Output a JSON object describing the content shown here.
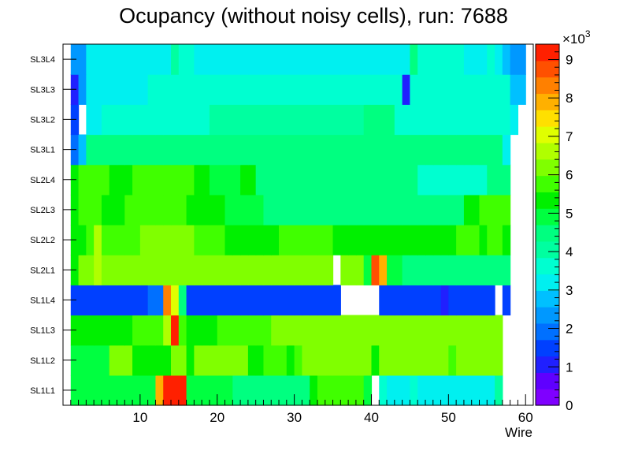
{
  "chart_data": {
    "type": "heatmap",
    "title": "Ocupancy (without noisy cells), run: 7688",
    "xlabel": "Wire",
    "ylabel": "",
    "x_range": [
      0,
      60
    ],
    "x_ticks": [
      "10",
      "20",
      "30",
      "40",
      "50",
      "60"
    ],
    "x_tick_values": [
      10,
      20,
      30,
      40,
      50,
      60
    ],
    "y_categories": [
      "SL1L1",
      "SL1L2",
      "SL1L3",
      "SL1L4",
      "SL2L1",
      "SL2L2",
      "SL2L3",
      "SL2L4",
      "SL3L1",
      "SL3L2",
      "SL3L3",
      "SL3L4"
    ],
    "z_range": [
      0,
      9400
    ],
    "z_ticks": [
      "0",
      "1",
      "2",
      "3",
      "4",
      "5",
      "6",
      "7",
      "8",
      "9"
    ],
    "z_tick_values": [
      0,
      1000,
      2000,
      3000,
      4000,
      5000,
      6000,
      7000,
      8000,
      9000
    ],
    "z_exponent": "×10",
    "z_exponent_power": "3",
    "palette": [
      "#7f00ff",
      "#5f00ff",
      "#2020ff",
      "#0040ff",
      "#0070ff",
      "#0098ff",
      "#00c0ff",
      "#00f0f0",
      "#00ffd0",
      "#00ffa0",
      "#00ff80",
      "#00ff40",
      "#00f000",
      "#40ff00",
      "#80ff00",
      "#b0ff00",
      "#e0ff00",
      "#ffe000",
      "#ffb000",
      "#ff8000",
      "#ff5000",
      "#ff2000"
    ],
    "rows": {
      "SL1L1": [
        null,
        4800,
        4800,
        4800,
        5000,
        5000,
        5000,
        5000,
        5000,
        5000,
        5000,
        5000,
        7800,
        9000,
        9000,
        9000,
        4800,
        4800,
        5000,
        5000,
        5000,
        5000,
        4600,
        4600,
        4600,
        4400,
        4400,
        4400,
        4400,
        4400,
        4400,
        4400,
        5200,
        5600,
        5600,
        5600,
        5600,
        5600,
        5600,
        5000,
        null,
        3800,
        3400,
        3400,
        3400,
        3600,
        3200,
        3200,
        3400,
        3400,
        3400,
        3400,
        3400,
        3400,
        3400,
        3400,
        4000,
        null,
        null,
        null,
        null
      ],
      "SL1L2": [
        null,
        5000,
        5000,
        5000,
        5000,
        5000,
        6000,
        6000,
        6000,
        5400,
        5400,
        5400,
        5400,
        5400,
        6000,
        6000,
        5400,
        6000,
        6000,
        6000,
        6000,
        6000,
        6000,
        6000,
        5200,
        5200,
        5600,
        5600,
        5600,
        5200,
        5600,
        6000,
        6000,
        6000,
        6000,
        6000,
        6000,
        6000,
        6000,
        6000,
        5200,
        6000,
        6000,
        6000,
        6000,
        6000,
        6000,
        6000,
        6000,
        6000,
        5600,
        6000,
        6000,
        6000,
        6000,
        6000,
        6000,
        null,
        null,
        null,
        null
      ],
      "SL1L3": [
        null,
        5200,
        5400,
        5400,
        5400,
        5400,
        5400,
        5400,
        5400,
        5800,
        5800,
        5800,
        5800,
        6500,
        9000,
        5800,
        5200,
        5200,
        5200,
        5200,
        5800,
        5800,
        5800,
        5600,
        5600,
        5800,
        5800,
        6000,
        6000,
        6000,
        6000,
        6000,
        6000,
        6000,
        6000,
        6000,
        6000,
        6000,
        6000,
        6000,
        6000,
        6000,
        6000,
        6000,
        6000,
        6000,
        6000,
        6000,
        6000,
        6000,
        6000,
        6000,
        6000,
        6000,
        6000,
        6000,
        6000,
        null,
        null,
        null,
        null
      ],
      "SL1L4": [
        null,
        1400,
        1400,
        1400,
        1400,
        1400,
        1400,
        1400,
        1400,
        1400,
        1400,
        2000,
        2000,
        8400,
        7000,
        4400,
        1600,
        1600,
        1600,
        1600,
        1600,
        1600,
        1600,
        1600,
        1600,
        1300,
        1300,
        1300,
        1300,
        1300,
        1300,
        1300,
        1300,
        1300,
        1300,
        1600,
        null,
        null,
        null,
        null,
        null,
        1300,
        1300,
        1300,
        1300,
        1300,
        1300,
        1300,
        1300,
        1000,
        1300,
        1300,
        1300,
        1300,
        1300,
        1300,
        null,
        1300,
        null,
        null,
        null
      ],
      "SL2L1": [
        null,
        5400,
        6000,
        6000,
        6500,
        6000,
        6000,
        6000,
        6000,
        6000,
        6000,
        6000,
        6000,
        6000,
        6000,
        6000,
        6000,
        6000,
        6000,
        6000,
        6000,
        6000,
        6000,
        6000,
        6000,
        6000,
        6000,
        6000,
        6000,
        6000,
        6000,
        6000,
        6000,
        6000,
        6000,
        null,
        6000,
        6000,
        6000,
        5000,
        8600,
        7800,
        5000,
        5000,
        4400,
        4400,
        4400,
        4400,
        4400,
        4400,
        4400,
        4400,
        4400,
        4400,
        4400,
        4400,
        4400,
        4400,
        null,
        null,
        null
      ],
      "SL2L2": [
        null,
        5400,
        5400,
        5600,
        6500,
        5800,
        5800,
        5600,
        5600,
        5600,
        6000,
        6000,
        6000,
        6000,
        6000,
        6000,
        6000,
        5600,
        5600,
        5600,
        5600,
        5200,
        5200,
        5200,
        5200,
        5400,
        5400,
        5400,
        5600,
        5600,
        5600,
        5600,
        5600,
        5600,
        5600,
        5400,
        5400,
        5400,
        5400,
        5400,
        5400,
        5400,
        5400,
        5400,
        5400,
        5400,
        5400,
        5400,
        5400,
        5400,
        5400,
        5600,
        5800,
        5800,
        5200,
        5600,
        5600,
        5200,
        null,
        null,
        null
      ],
      "SL2L3": [
        null,
        5200,
        5600,
        5800,
        5800,
        5400,
        5400,
        5400,
        5600,
        5600,
        5600,
        5600,
        5600,
        5600,
        5600,
        5600,
        5200,
        5200,
        5200,
        5200,
        5200,
        4800,
        4800,
        4800,
        4800,
        4800,
        4600,
        4600,
        4600,
        4400,
        4400,
        4600,
        4600,
        4600,
        4600,
        4600,
        4600,
        4600,
        4600,
        4600,
        4600,
        4600,
        4600,
        4600,
        4600,
        4600,
        4600,
        4600,
        4600,
        4600,
        4600,
        4600,
        5200,
        5200,
        5600,
        5600,
        5600,
        5600,
        null,
        null,
        null
      ],
      "SL2L4": [
        null,
        5200,
        5600,
        5600,
        5600,
        5600,
        5400,
        5400,
        5200,
        5600,
        5600,
        5600,
        5600,
        5600,
        5600,
        5600,
        5600,
        5200,
        5200,
        5000,
        5000,
        5000,
        5000,
        5200,
        5200,
        4400,
        4400,
        4400,
        4400,
        4400,
        4400,
        4400,
        4400,
        4400,
        4400,
        4400,
        4400,
        4400,
        4400,
        4400,
        4400,
        4400,
        4400,
        4400,
        4400,
        4400,
        3600,
        3600,
        3600,
        3600,
        3600,
        3600,
        3600,
        3600,
        3600,
        4400,
        4400,
        4400,
        null,
        null,
        null
      ],
      "SL3L1": [
        null,
        1800,
        2800,
        4400,
        4400,
        4400,
        4400,
        4400,
        4400,
        4400,
        4400,
        4400,
        4400,
        4400,
        4400,
        4400,
        4400,
        4400,
        4400,
        4400,
        4400,
        4400,
        4400,
        4400,
        4400,
        4400,
        4400,
        4400,
        4400,
        4400,
        4400,
        4400,
        4400,
        4400,
        4400,
        4400,
        4400,
        4400,
        4400,
        4400,
        4400,
        4400,
        4400,
        4400,
        4400,
        4600,
        4600,
        4600,
        4600,
        4600,
        4600,
        4600,
        4600,
        4400,
        4400,
        4400,
        4400,
        3200,
        null,
        null,
        null
      ],
      "SL3L2": [
        null,
        1400,
        null,
        3200,
        3200,
        3800,
        3800,
        3800,
        3800,
        3800,
        3800,
        3800,
        3800,
        3800,
        3800,
        3800,
        3800,
        3800,
        3800,
        4000,
        4000,
        4000,
        4000,
        4000,
        4000,
        4000,
        4000,
        4000,
        4000,
        4000,
        4000,
        4000,
        4000,
        4000,
        4000,
        4000,
        4000,
        4000,
        4000,
        4400,
        4400,
        4400,
        4400,
        3800,
        3800,
        3800,
        3800,
        3800,
        3800,
        3800,
        3800,
        3800,
        3800,
        3800,
        3800,
        3800,
        3800,
        3800,
        3200,
        null,
        null
      ],
      "SL3L3": [
        null,
        1200,
        2400,
        3000,
        3000,
        3400,
        3400,
        3400,
        3400,
        3400,
        3400,
        3600,
        3600,
        3600,
        3600,
        3600,
        3600,
        3600,
        3600,
        3600,
        3600,
        3600,
        3600,
        3600,
        3600,
        3600,
        3600,
        3600,
        3600,
        3600,
        3600,
        3600,
        3600,
        3600,
        3600,
        3600,
        3600,
        3600,
        3600,
        3600,
        3600,
        3600,
        3600,
        3600,
        1000,
        3600,
        3600,
        3600,
        3600,
        3600,
        3600,
        3600,
        3600,
        3600,
        3600,
        3600,
        3600,
        3600,
        2600,
        2600,
        null
      ],
      "SL3L4": [
        null,
        2200,
        2200,
        3000,
        3000,
        3000,
        3000,
        3000,
        3000,
        3000,
        3000,
        3000,
        3000,
        3000,
        4000,
        3800,
        3800,
        3400,
        3400,
        3400,
        3400,
        3400,
        3400,
        3400,
        3400,
        3000,
        3000,
        3000,
        3000,
        3000,
        3400,
        3400,
        3400,
        3400,
        3400,
        3000,
        3400,
        3400,
        3400,
        3400,
        3400,
        3400,
        3400,
        3400,
        3400,
        4400,
        3800,
        3800,
        3800,
        3800,
        3800,
        3800,
        3400,
        3400,
        3400,
        3800,
        3000,
        2600,
        2200,
        2200,
        null
      ]
    }
  }
}
